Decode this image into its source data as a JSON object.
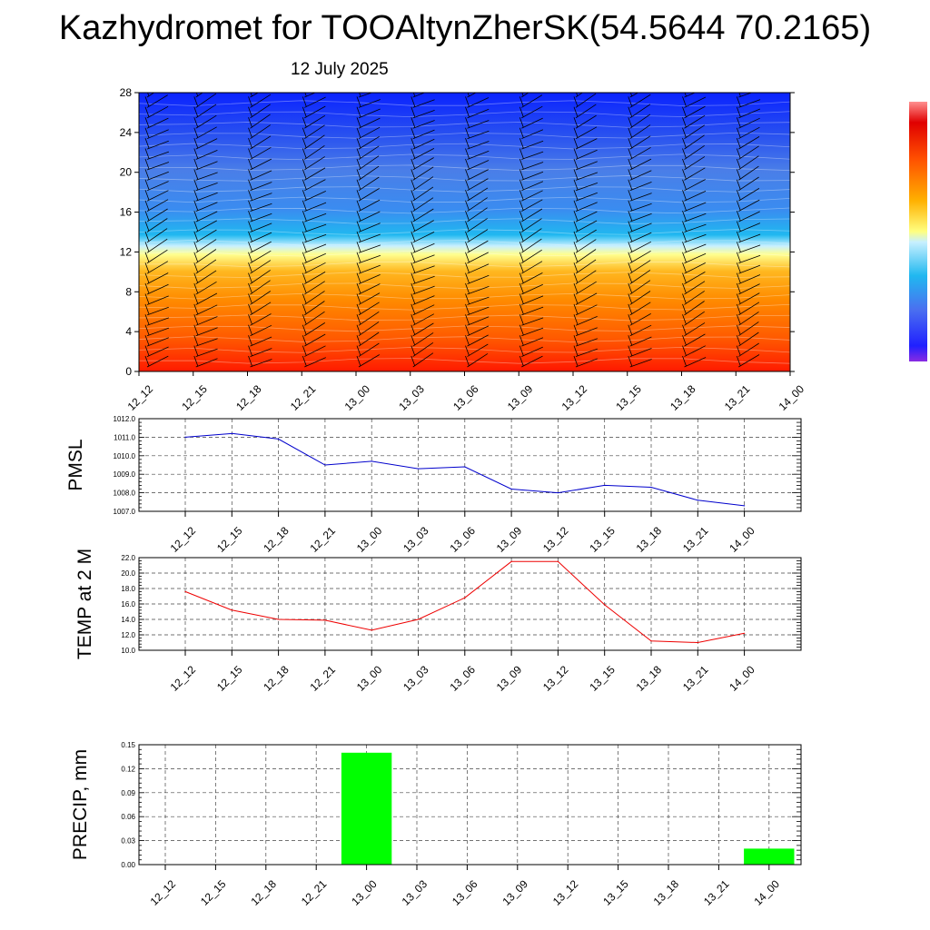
{
  "page": {
    "title": "Kazhydromet for TOOAltynZherSK(54.5644 70.2165)",
    "subtitle": "12 July 2025"
  },
  "chart_data": [
    {
      "type": "heatmap",
      "name": "cross-section",
      "x": [
        "12_12",
        "12_15",
        "12_18",
        "12_21",
        "13_00",
        "13_03",
        "13_06",
        "13_09",
        "13_12",
        "13_15",
        "13_18",
        "13_21",
        "14_00"
      ],
      "yticks": [
        0,
        4,
        8,
        12,
        16,
        20,
        24,
        28
      ],
      "ylim": [
        0,
        28
      ],
      "colorbar": true,
      "wind_barbs": true,
      "colors": {
        "low": "#ff1a00",
        "mid": "#ffff80",
        "high": "#0a22ff"
      }
    },
    {
      "type": "line",
      "name": "pmsl",
      "ylabel": "PMSL",
      "x": [
        "12_12",
        "12_15",
        "12_18",
        "12_21",
        "13_00",
        "13_03",
        "13_06",
        "13_09",
        "13_12",
        "13_15",
        "13_18",
        "13_21",
        "14_00"
      ],
      "values": [
        1011.0,
        1011.2,
        1010.9,
        1009.5,
        1009.7,
        1009.3,
        1009.4,
        1008.2,
        1008.0,
        1008.4,
        1008.3,
        1007.6,
        1007.3
      ],
      "ylim": [
        1007.0,
        1012.0
      ],
      "yticks": [
        "1007.0",
        "1008.0",
        "1009.0",
        "1010.0",
        "1011.0",
        "1012.0"
      ],
      "color": "#0000cc",
      "grid": true
    },
    {
      "type": "line",
      "name": "temp",
      "ylabel": "TEMP at 2 M",
      "x": [
        "12_12",
        "12_15",
        "12_18",
        "12_21",
        "13_00",
        "13_03",
        "13_06",
        "13_09",
        "13_12",
        "13_15",
        "13_18",
        "13_21",
        "14_00"
      ],
      "values": [
        17.6,
        15.2,
        14.0,
        13.9,
        12.6,
        14.0,
        16.8,
        21.5,
        21.5,
        15.9,
        11.2,
        11.0,
        12.2
      ],
      "ylim": [
        10.0,
        22.0
      ],
      "yticks": [
        "10.0",
        "12.0",
        "14.0",
        "16.0",
        "18.0",
        "20.0",
        "22.0"
      ],
      "color": "#ee0000",
      "grid": true
    },
    {
      "type": "bar",
      "name": "precip",
      "ylabel": "PRECIP, mm",
      "x": [
        "12_12",
        "12_15",
        "12_18",
        "12_21",
        "13_00",
        "13_03",
        "13_06",
        "13_09",
        "13_12",
        "13_15",
        "13_18",
        "13_21",
        "14_00"
      ],
      "values": [
        0,
        0,
        0,
        0,
        0.14,
        0,
        0,
        0,
        0,
        0,
        0,
        0,
        0.02
      ],
      "ylim": [
        0,
        0.15
      ],
      "yticks": [
        "0.00",
        "0.03",
        "0.06",
        "0.09",
        "0.12",
        "0.15"
      ],
      "color": "#00ff00",
      "grid": true
    }
  ]
}
